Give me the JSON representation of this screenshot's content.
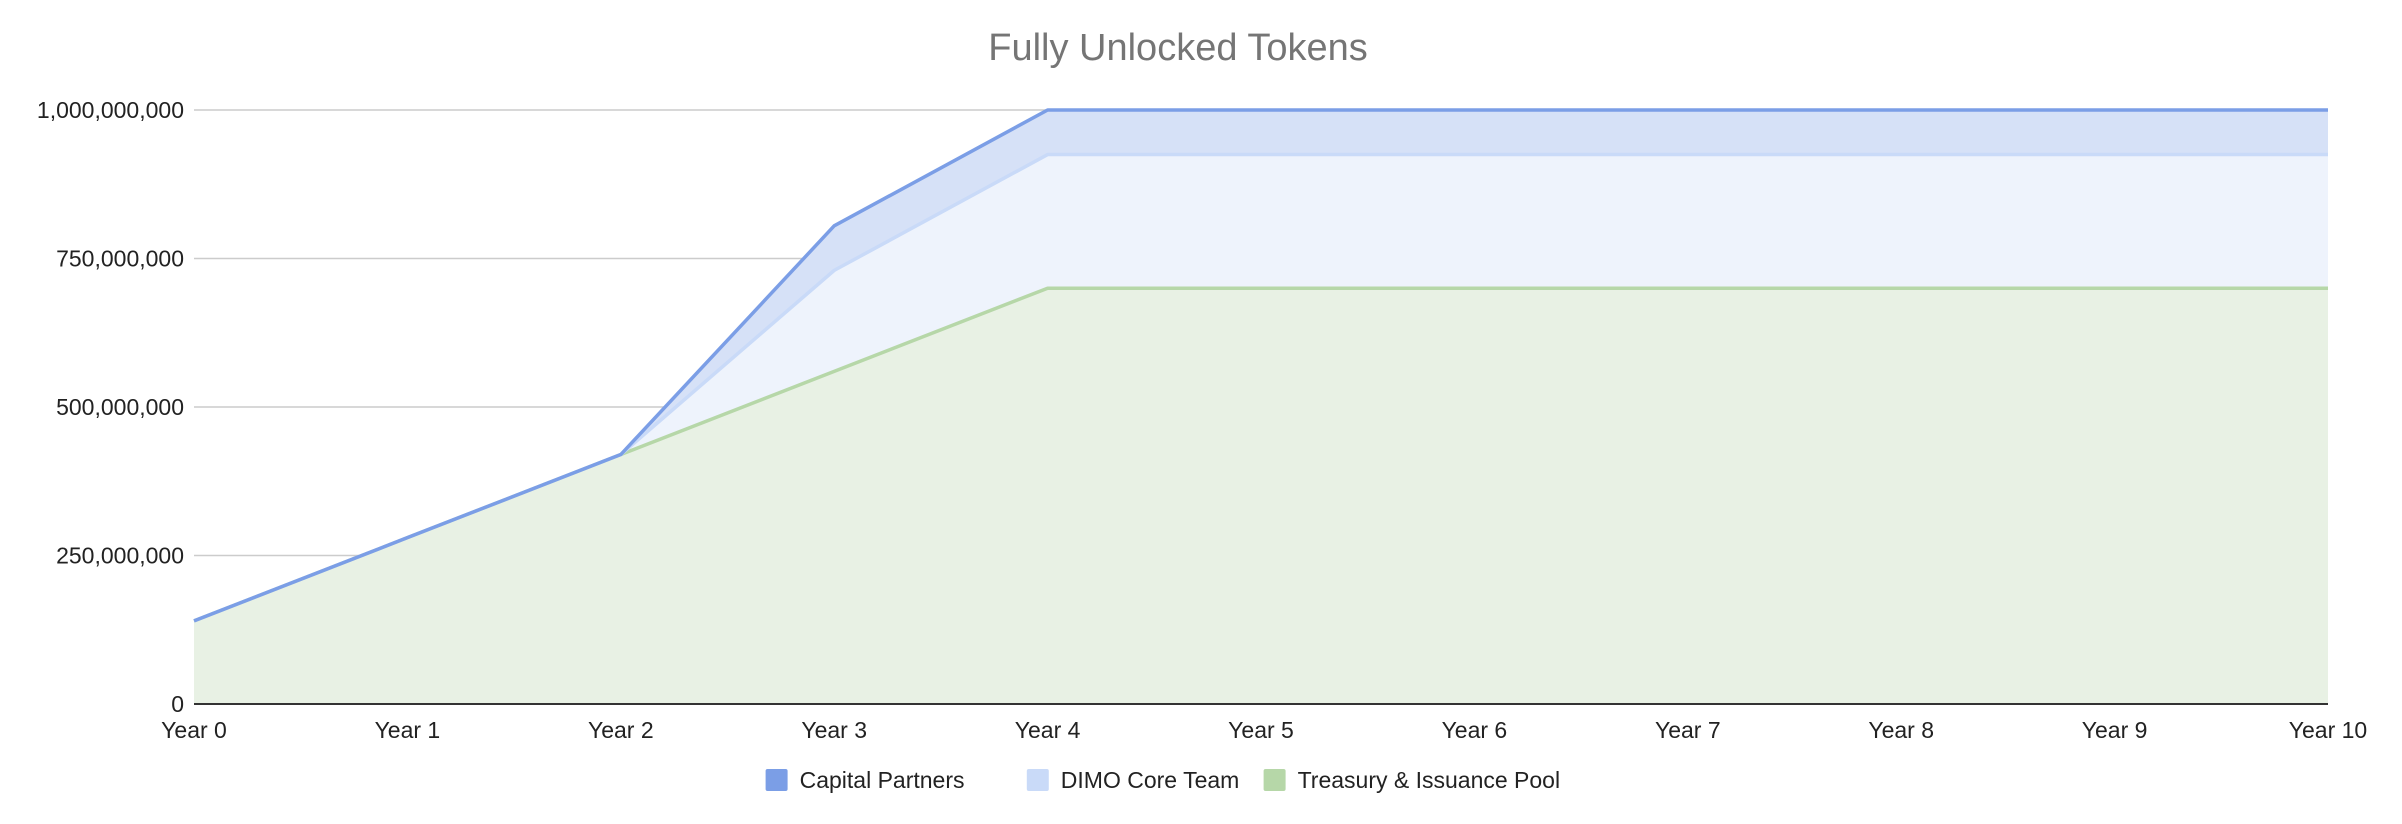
{
  "chart_data": {
    "type": "area",
    "stacked": true,
    "title": "Fully Unlocked Tokens",
    "xlabel": "",
    "ylabel": "",
    "categories": [
      "Year 0",
      "Year 1",
      "Year 2",
      "Year 3",
      "Year 4",
      "Year 5",
      "Year 6",
      "Year 7",
      "Year 8",
      "Year 9",
      "Year 10"
    ],
    "ylim": [
      0,
      1000000000
    ],
    "yticks": [
      0,
      250000000,
      500000000,
      750000000,
      1000000000
    ],
    "ytick_labels": [
      "0",
      "250,000,000",
      "500,000,000",
      "750,000,000",
      "1,000,000,000"
    ],
    "grid": true,
    "legend_position": "bottom",
    "series": [
      {
        "name": "Treasury & Issuance Pool",
        "color": "#b6d7a8",
        "fill": "#e8f1e4",
        "values": [
          140000000,
          280000000,
          420000000,
          560000000,
          700000000,
          700000000,
          700000000,
          700000000,
          700000000,
          700000000,
          700000000
        ]
      },
      {
        "name": "DIMO Core Team",
        "color": "#c9daf8",
        "fill": "#eef3fc",
        "values": [
          0,
          0,
          0,
          170000000,
          225000000,
          225000000,
          225000000,
          225000000,
          225000000,
          225000000,
          225000000
        ]
      },
      {
        "name": "Capital Partners",
        "color": "#7b9ee6",
        "fill": "#d6e1f7",
        "values": [
          0,
          0,
          0,
          75000000,
          75000000,
          75000000,
          75000000,
          75000000,
          75000000,
          75000000,
          75000000
        ]
      }
    ],
    "legend_order": [
      "Capital Partners",
      "DIMO Core Team",
      "Treasury & Issuance Pool"
    ]
  }
}
